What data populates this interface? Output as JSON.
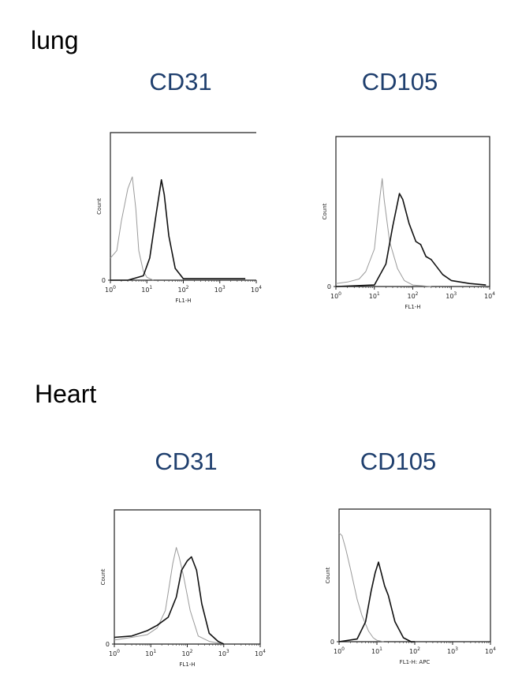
{
  "sections": {
    "lung": "lung",
    "heart": "Heart"
  },
  "markers": {
    "lung_cd31": "CD31",
    "lung_cd105": "CD105",
    "heart_cd31": "CD31",
    "heart_cd105": "CD105"
  },
  "colors": {
    "title": "#1f3f6e",
    "sample_trace": "#111111",
    "control_trace": "#9a9a9a"
  },
  "chart_data": [
    {
      "id": "lung-cd31",
      "type": "line",
      "title": "CD31",
      "xlabel": "FL1-H",
      "ylabel": "Count",
      "x_scale": "log",
      "xlim": [
        1,
        10000
      ],
      "x_ticks": [
        "10^0",
        "10^1",
        "10^2",
        "10^3",
        "10^4"
      ],
      "ylim": [
        0,
        1
      ],
      "y_ticks": [
        "0"
      ],
      "series": [
        {
          "role": "control",
          "x": [
            1,
            1.5,
            2,
            3,
            4,
            5,
            6,
            8,
            10,
            15
          ],
          "y": [
            0.15,
            0.2,
            0.4,
            0.62,
            0.7,
            0.48,
            0.2,
            0.06,
            0.02,
            0
          ]
        },
        {
          "role": "sample",
          "x": [
            1,
            3,
            8,
            12,
            18,
            25,
            30,
            40,
            60,
            100,
            200,
            1000,
            5000
          ],
          "y": [
            0,
            0,
            0.03,
            0.15,
            0.45,
            0.68,
            0.58,
            0.3,
            0.08,
            0.01,
            0.01,
            0.01,
            0.01
          ]
        }
      ]
    },
    {
      "id": "lung-cd105",
      "type": "line",
      "title": "CD105",
      "xlabel": "FL1-H",
      "ylabel": "Count",
      "x_scale": "log",
      "xlim": [
        1,
        10000
      ],
      "x_ticks": [
        "10^0",
        "10^1",
        "10^2",
        "10^3",
        "10^4"
      ],
      "ylim": [
        0,
        1
      ],
      "y_ticks": [
        "0"
      ],
      "series": [
        {
          "role": "control",
          "x": [
            1,
            2,
            4,
            6,
            10,
            14,
            16,
            18,
            25,
            40,
            60,
            100,
            300
          ],
          "y": [
            0.02,
            0.03,
            0.05,
            0.1,
            0.25,
            0.6,
            0.72,
            0.58,
            0.3,
            0.12,
            0.04,
            0.01,
            0
          ]
        },
        {
          "role": "sample",
          "x": [
            1,
            10,
            20,
            30,
            45,
            55,
            80,
            120,
            160,
            220,
            300,
            600,
            1000,
            3000,
            8000
          ],
          "y": [
            0,
            0.01,
            0.15,
            0.4,
            0.62,
            0.58,
            0.42,
            0.3,
            0.28,
            0.2,
            0.18,
            0.08,
            0.04,
            0.02,
            0.01
          ]
        }
      ]
    },
    {
      "id": "heart-cd31",
      "type": "line",
      "title": "CD31",
      "xlabel": "FL1-H",
      "ylabel": "Count",
      "x_scale": "log",
      "xlim": [
        1,
        10000
      ],
      "x_ticks": [
        "10^0",
        "10^1",
        "10^2",
        "10^3",
        "10^4"
      ],
      "ylim": [
        0,
        1
      ],
      "y_ticks": [
        "0"
      ],
      "series": [
        {
          "role": "control",
          "x": [
            1,
            3,
            8,
            15,
            25,
            40,
            50,
            60,
            80,
            120,
            200,
            400,
            1000
          ],
          "y": [
            0.03,
            0.05,
            0.07,
            0.12,
            0.25,
            0.6,
            0.72,
            0.65,
            0.5,
            0.25,
            0.06,
            0.02,
            0
          ]
        },
        {
          "role": "sample",
          "x": [
            1,
            3,
            8,
            15,
            30,
            50,
            70,
            100,
            130,
            180,
            250,
            400,
            700,
            1000
          ],
          "y": [
            0.05,
            0.06,
            0.1,
            0.14,
            0.2,
            0.35,
            0.55,
            0.62,
            0.65,
            0.55,
            0.3,
            0.08,
            0.02,
            0
          ]
        }
      ]
    },
    {
      "id": "heart-cd105",
      "type": "line",
      "title": "CD105",
      "xlabel": "FL1-H: APC",
      "ylabel": "Count",
      "x_scale": "log",
      "xlim": [
        1,
        10000
      ],
      "x_ticks": [
        "10^0",
        "10^1",
        "10^2",
        "10^3",
        "10^4"
      ],
      "ylim": [
        0,
        1
      ],
      "y_ticks": [
        "0"
      ],
      "series": [
        {
          "role": "control",
          "x": [
            1,
            1.2,
            1.5,
            2,
            3,
            4,
            6,
            8,
            10,
            15
          ],
          "y": [
            0.82,
            0.8,
            0.7,
            0.55,
            0.32,
            0.2,
            0.08,
            0.03,
            0.01,
            0
          ]
        },
        {
          "role": "sample",
          "x": [
            1,
            3,
            5,
            7,
            9,
            11,
            13,
            16,
            20,
            30,
            50,
            80,
            100
          ],
          "y": [
            0,
            0.02,
            0.15,
            0.38,
            0.52,
            0.6,
            0.52,
            0.42,
            0.35,
            0.15,
            0.03,
            0,
            0
          ]
        }
      ]
    }
  ]
}
